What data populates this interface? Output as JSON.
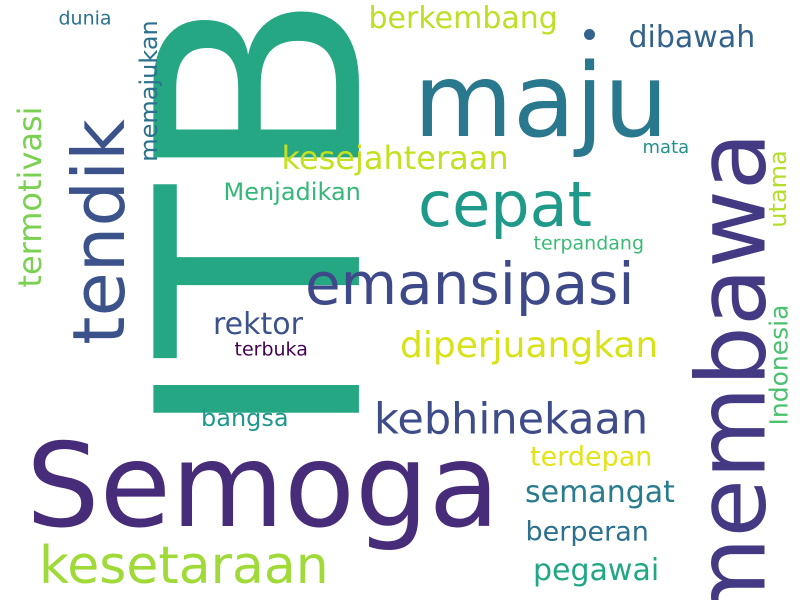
{
  "title": "word-cloud",
  "words": [
    {
      "id": "itb",
      "text": "ITB",
      "color": "#26a784"
    },
    {
      "id": "semoga",
      "text": "Semoga",
      "color": "#472c7a"
    },
    {
      "id": "maju",
      "text": "maju",
      "color": "#2a788e"
    },
    {
      "id": "membawa",
      "text": "membawa",
      "color": "#443983"
    },
    {
      "id": "tendik",
      "text": "tendik",
      "color": "#3b528b"
    },
    {
      "id": "cepat",
      "text": "cepat",
      "color": "#1f9a8a"
    },
    {
      "id": "emansipasi",
      "text": "emansipasi",
      "color": "#3e4989"
    },
    {
      "id": "kesetaraan",
      "text": "kesetaraan",
      "color": "#a0da39"
    },
    {
      "id": "kebhinekaan",
      "text": "kebhinekaan",
      "color": "#3e4c8a"
    },
    {
      "id": "diperjuangkan",
      "text": "diperjuangkan",
      "color": "#d8e219"
    },
    {
      "id": "kesejahteraan",
      "text": "kesejahteraan",
      "color": "#c5e021"
    },
    {
      "id": "berkembang",
      "text": "berkembang",
      "color": "#bddf26"
    },
    {
      "id": "dibawah",
      "text": "dibawah",
      "color": "#33638d"
    },
    {
      "id": "semangat",
      "text": "semangat",
      "color": "#297b8e"
    },
    {
      "id": "pegawai",
      "text": "pegawai",
      "color": "#22a785"
    },
    {
      "id": "rektor",
      "text": "rektor",
      "color": "#3b528b"
    },
    {
      "id": "termotivasi",
      "text": "termotivasi",
      "color": "#7ad151"
    },
    {
      "id": "memajukan",
      "text": "memajukan",
      "color": "#2c728e"
    },
    {
      "id": "terdepan",
      "text": "terdepan",
      "color": "#e2e418"
    },
    {
      "id": "berperan",
      "text": "berperan",
      "color": "#2c718e"
    },
    {
      "id": "menjadikan",
      "text": "Menjadikan",
      "color": "#35b779"
    },
    {
      "id": "indonesia",
      "text": "Indonesia",
      "color": "#4ac16d"
    },
    {
      "id": "bangsa",
      "text": "bangsa",
      "color": "#1f988b"
    },
    {
      "id": "utama",
      "text": "utama",
      "color": "#b5de2b"
    },
    {
      "id": "terpandang",
      "text": "terpandang",
      "color": "#3bbb75"
    },
    {
      "id": "terbuka",
      "text": "terbuka",
      "color": "#440154"
    },
    {
      "id": "mata",
      "text": "mata",
      "color": "#21918c"
    },
    {
      "id": "dunia",
      "text": "dunia",
      "color": "#2c728e"
    }
  ],
  "bullet": {
    "color": "#33638d"
  }
}
